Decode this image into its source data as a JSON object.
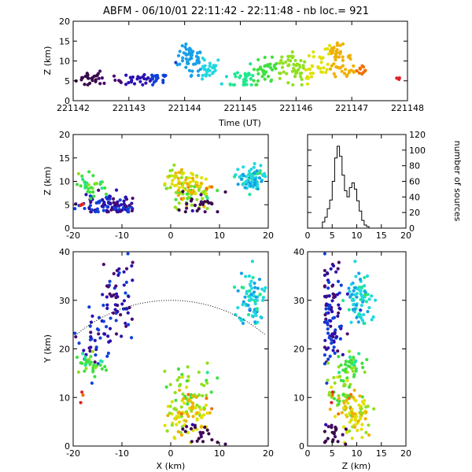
{
  "title": "ABFM - 06/10/01 22:11:42 - 22:11:48 - nb loc.=    921",
  "chart_data": [
    {
      "id": "time_height",
      "type": "scatter",
      "xlabel": "Time (UT)",
      "ylabel": "Z (km)",
      "xlim": [
        0,
        6
      ],
      "ylim": [
        0,
        20
      ],
      "xticks": [
        0,
        1,
        2,
        3,
        4,
        5,
        6
      ],
      "xtick_labels": [
        "221142",
        "221143",
        "221144",
        "221145",
        "221146",
        "221147",
        "221148"
      ],
      "yticks": [
        0,
        5,
        10,
        15,
        20
      ],
      "color_by": "time",
      "clusters": [
        {
          "t": 0.3,
          "z": 5.5,
          "st": 0.12,
          "sz": 1.0,
          "n": 20
        },
        {
          "t": 0.5,
          "z": 5.8,
          "st": 0.05,
          "sz": 0.8,
          "n": 6
        },
        {
          "t": 1.25,
          "z": 5.2,
          "st": 0.25,
          "sz": 0.8,
          "n": 40
        },
        {
          "t": 1.55,
          "z": 6.0,
          "st": 0.05,
          "sz": 0.4,
          "n": 5
        },
        {
          "t": 2.1,
          "z": 11.0,
          "st": 0.12,
          "sz": 1.3,
          "n": 45
        },
        {
          "t": 2.3,
          "z": 8.0,
          "st": 0.2,
          "sz": 1.5,
          "n": 35
        },
        {
          "t": 3.1,
          "z": 5.5,
          "st": 0.2,
          "sz": 1.5,
          "n": 35
        },
        {
          "t": 3.45,
          "z": 7.5,
          "st": 0.15,
          "sz": 1.5,
          "n": 30
        },
        {
          "t": 3.9,
          "z": 10.0,
          "st": 0.2,
          "sz": 1.3,
          "n": 30
        },
        {
          "t": 4.2,
          "z": 7.5,
          "st": 0.25,
          "sz": 1.5,
          "n": 40
        },
        {
          "t": 4.7,
          "z": 11.0,
          "st": 0.15,
          "sz": 1.5,
          "n": 45
        },
        {
          "t": 5.0,
          "z": 7.5,
          "st": 0.2,
          "sz": 1.2,
          "n": 25
        },
        {
          "t": 5.85,
          "z": 5.7,
          "st": 0.02,
          "sz": 0.3,
          "n": 4
        }
      ]
    },
    {
      "id": "x_z",
      "type": "scatter",
      "xlabel": "",
      "ylabel": "Z (km)",
      "xlim": [
        -20,
        20
      ],
      "ylim": [
        0,
        20
      ],
      "xticks": [
        -20,
        -10,
        0,
        10,
        20
      ],
      "yticks": [
        0,
        5,
        10,
        15,
        20
      ]
    },
    {
      "id": "height_histogram",
      "type": "line",
      "xlabel": "",
      "ylabel": "number of sources",
      "xlim": [
        0,
        20
      ],
      "ylim": [
        0,
        120
      ],
      "xticks": [
        0,
        5,
        10,
        15,
        20
      ],
      "yticks": [
        0,
        20,
        40,
        60,
        80,
        100,
        120
      ],
      "bin_width": 0.5,
      "bin_start": 3.0,
      "counts": [
        8,
        14,
        25,
        36,
        60,
        90,
        105,
        92,
        68,
        48,
        40,
        52,
        58,
        50,
        35,
        22,
        10,
        4,
        2,
        0
      ]
    },
    {
      "id": "x_y",
      "type": "scatter",
      "xlabel": "X (km)",
      "ylabel": "Y (km)",
      "xlim": [
        -20,
        20
      ],
      "ylim": [
        0,
        40
      ],
      "xticks": [
        -20,
        -10,
        0,
        10,
        20
      ],
      "yticks": [
        0,
        10,
        20,
        30,
        40
      ],
      "range_circle_km": 30,
      "clusters": [
        {
          "x": -11,
          "y": 30,
          "sx": 2.0,
          "sy": 5.0,
          "z": 5.0,
          "n": 60
        },
        {
          "x": -15,
          "y": 23,
          "sx": 2.0,
          "sy": 2.5,
          "z": 5.0,
          "n": 40
        },
        {
          "x": -17,
          "y": 17,
          "sx": 2.0,
          "sy": 1.5,
          "z": 9.0,
          "n": 35
        },
        {
          "x": 17,
          "y": 30,
          "sx": 1.5,
          "sy": 2.5,
          "z": 11.0,
          "n": 50
        },
        {
          "x": 16,
          "y": 31,
          "sx": 1.2,
          "sy": 3.0,
          "z": 9.5,
          "n": 30
        },
        {
          "x": 4,
          "y": 11,
          "sx": 2.5,
          "sy": 3.0,
          "z": 7.0,
          "n": 45
        },
        {
          "x": 2,
          "y": 6,
          "sx": 2.0,
          "sy": 2.0,
          "z": 10.5,
          "n": 50
        },
        {
          "x": 5,
          "y": 7,
          "sx": 2.0,
          "sy": 2.0,
          "z": 8.5,
          "n": 35
        },
        {
          "x": 6,
          "y": 2,
          "sx": 2.0,
          "sy": 1.5,
          "z": 5.5,
          "n": 25
        },
        {
          "x": -18,
          "y": 10,
          "sx": 0.5,
          "sy": 0.5,
          "z": 5.5,
          "n": 3
        }
      ]
    },
    {
      "id": "z_y",
      "type": "scatter",
      "xlabel": "Z (km)",
      "ylabel": "",
      "xlim": [
        0,
        20
      ],
      "ylim": [
        0,
        40
      ],
      "xticks": [
        0,
        5,
        10,
        15,
        20
      ],
      "yticks": [
        0,
        10,
        20,
        30,
        40
      ]
    }
  ],
  "colormap": [
    "#3a0a4a",
    "#4a0a6e",
    "#2a10b0",
    "#1040d8",
    "#18a0e8",
    "#20d8e0",
    "#20e890",
    "#40e040",
    "#90e020",
    "#e0e000",
    "#f0b000",
    "#f07000",
    "#e02020"
  ]
}
